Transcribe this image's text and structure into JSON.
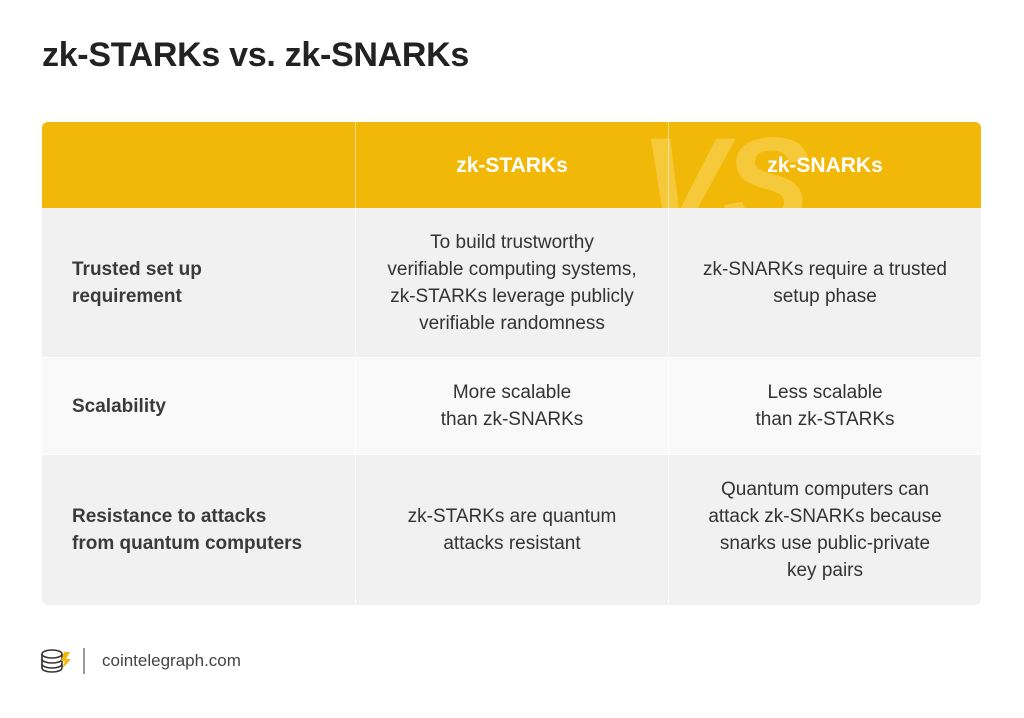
{
  "header": {
    "title": "zk-STARKs vs. zk-SNARKs"
  },
  "table": {
    "watermark": "VS.",
    "columns": [
      "zk-STARKs",
      "zk-SNARKs"
    ],
    "rows": [
      {
        "label": [
          "Trusted set up",
          "requirement"
        ],
        "cells": [
          [
            "To build trustworthy",
            "verifiable computing systems,",
            "zk-STARKs leverage publicly",
            "verifiable randomness"
          ],
          [
            "zk-SNARKs require a trusted",
            "setup phase"
          ]
        ]
      },
      {
        "label": [
          "Scalability"
        ],
        "cells": [
          [
            "More scalable",
            "than zk-SNARKs"
          ],
          [
            "Less scalable",
            "than zk-STARKs"
          ]
        ]
      },
      {
        "label": [
          "Resistance to attacks",
          "from quantum computers"
        ],
        "cells": [
          [
            "zk-STARKs are quantum",
            "attacks resistant"
          ],
          [
            "Quantum computers can",
            "attack zk-SNARKs because",
            "snarks use public-private",
            "key pairs"
          ]
        ]
      }
    ]
  },
  "footer": {
    "source": "cointelegraph.com"
  }
}
